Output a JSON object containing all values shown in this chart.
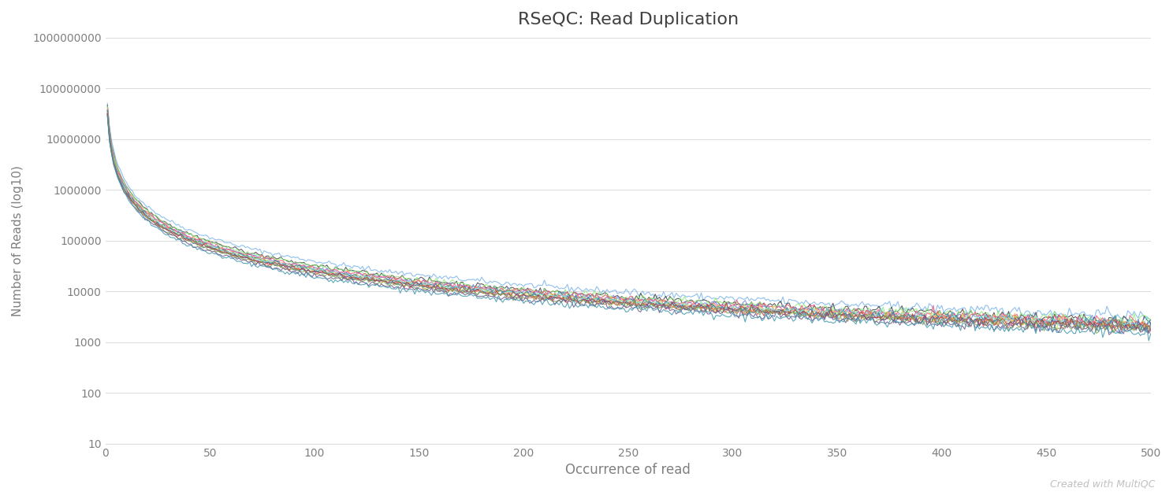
{
  "title": "RSeQC: Read Duplication",
  "xlabel": "Occurrence of read",
  "ylabel": "Number of Reads (log10)",
  "xlim": [
    0,
    500
  ],
  "ylim": [
    10,
    1000000000
  ],
  "background_color": "#ffffff",
  "grid_color": "#dddddd",
  "title_color": "#404040",
  "axis_label_color": "#808080",
  "tick_label_color": "#808080",
  "watermark": "Created with MultiQC",
  "watermark_color": "#c0c0c0",
  "line_colors": [
    "#7cb5ec",
    "#434348",
    "#90ed7d",
    "#f7a35c",
    "#8085e9",
    "#f15c80",
    "#e4d354",
    "#2b908f",
    "#f45b5b",
    "#91e8e1",
    "#4572a7",
    "#aa4643",
    "#89a54e",
    "#71588f",
    "#4198af"
  ],
  "num_lines": 15,
  "x_start": 1,
  "x_end": 500,
  "amplitudes": [
    50000000.0,
    45000000.0,
    42000000.0,
    40000000.0,
    38000000.0,
    37000000.0,
    36000000.0,
    35000000.0,
    34000000.0,
    33000000.0,
    32000000.0,
    31000000.0,
    30000000.0,
    29000000.0,
    28000000.0
  ],
  "exponents": [
    1.55,
    1.57,
    1.56,
    1.58,
    1.56,
    1.55,
    1.57,
    1.56,
    1.57,
    1.55,
    1.56,
    1.55,
    1.56,
    1.57,
    1.58
  ]
}
